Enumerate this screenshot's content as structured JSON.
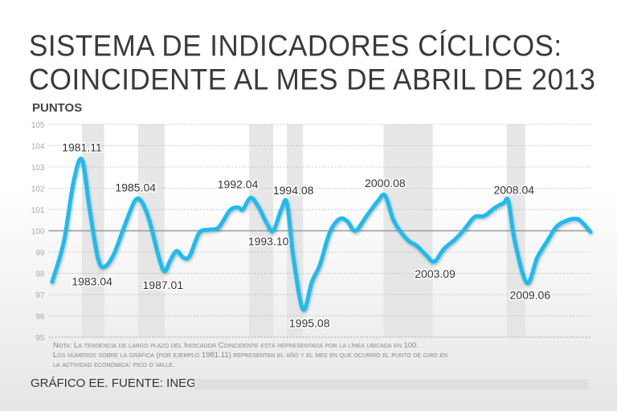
{
  "title_line1": "SISTEMA DE INDICADORES CÍCLICOS:",
  "title_line2": "COINCIDENTE AL MES DE ABRIL DE 2013",
  "notes": [
    "Nota: La tendencia de largo plazo del Indicador Coincidente está representada por la línea ubicada en 100.",
    "Los números sobre la gráfica (por ejemplo 1981.11) representan el año y el mes en que ocurrió el punto de giro en",
    "la actividad económica: pico o valle."
  ],
  "source": "GRÁFICO EE. FUENTE: INEGI.",
  "chart_data": {
    "type": "line",
    "title": "SISTEMA DE INDICADORES CÍCLICOS: COINCIDENTE AL MES DE ABRIL DE 2013",
    "ylabel": "PUNTOS",
    "xlabel": "",
    "ylim": [
      95,
      105
    ],
    "yticks": [
      "95",
      "96",
      "97",
      "98",
      "99",
      "100",
      "101",
      "102",
      "103",
      "104",
      "105"
    ],
    "xlim": [
      1980.0,
      2013.5
    ],
    "grid": true,
    "reference_line": 100,
    "line_color": "#1bbcef",
    "recession_shading_color": "#e3e3e3",
    "recession_bands": [
      [
        1981.92,
        1983.3
      ],
      [
        1985.4,
        1987.05
      ],
      [
        1992.3,
        1993.8
      ],
      [
        1994.65,
        1995.65
      ],
      [
        2000.65,
        2003.7
      ],
      [
        2008.3,
        2009.45
      ]
    ],
    "x": [
      1980.07,
      1980.8,
      1981.4,
      1981.92,
      1982.4,
      1982.9,
      1983.3,
      1983.9,
      1984.6,
      1985.2,
      1985.6,
      1986.1,
      1986.7,
      1987.05,
      1987.4,
      1987.8,
      1988.2,
      1988.6,
      1989.2,
      1989.8,
      1990.4,
      1991.1,
      1991.6,
      1991.9,
      1992.4,
      1992.9,
      1993.4,
      1993.8,
      1994.3,
      1994.65,
      1995.05,
      1995.65,
      1996.2,
      1996.7,
      1997.3,
      1997.9,
      1998.4,
      1998.9,
      1999.6,
      2000.3,
      2000.75,
      2001.3,
      2002.1,
      2002.7,
      2003.3,
      2003.8,
      2004.4,
      2005.1,
      2005.7,
      2006.3,
      2006.9,
      2007.6,
      2008.1,
      2008.4,
      2008.8,
      2009.55,
      2010.2,
      2010.8,
      2011.4,
      2012.1,
      2012.7,
      2013.1,
      2013.5
    ],
    "y": [
      97.6,
      99.5,
      102.3,
      103.35,
      101.0,
      98.75,
      98.3,
      98.9,
      100.3,
      101.4,
      101.4,
      100.5,
      98.75,
      98.1,
      98.6,
      99.05,
      98.75,
      98.8,
      99.9,
      100.05,
      100.15,
      100.95,
      101.1,
      101.0,
      101.55,
      101.1,
      100.35,
      100.0,
      101.0,
      101.3,
      98.75,
      96.3,
      97.6,
      98.4,
      99.9,
      100.55,
      100.45,
      100.0,
      100.7,
      101.4,
      101.65,
      100.45,
      99.6,
      99.3,
      98.85,
      98.55,
      99.15,
      99.6,
      100.1,
      100.65,
      100.7,
      101.1,
      101.3,
      101.4,
      99.5,
      97.55,
      98.75,
      99.5,
      100.2,
      100.5,
      100.55,
      100.3,
      99.95
    ],
    "annotations": [
      {
        "text": "1981.11",
        "x": 1981.92,
        "y": 103.35,
        "kind": "pico"
      },
      {
        "text": "1983.04",
        "x": 1983.3,
        "y": 98.3,
        "kind": "valle"
      },
      {
        "text": "1985.04",
        "x": 1985.4,
        "y": 101.4,
        "kind": "pico"
      },
      {
        "text": "1987.01",
        "x": 1987.05,
        "y": 98.1,
        "kind": "valle"
      },
      {
        "text": "1992.04",
        "x": 1992.4,
        "y": 101.55,
        "kind": "pico"
      },
      {
        "text": "1993.10",
        "x": 1993.8,
        "y": 100.0,
        "kind": "valle"
      },
      {
        "text": "1994.08",
        "x": 1994.65,
        "y": 101.3,
        "kind": "pico"
      },
      {
        "text": "1995.08",
        "x": 1995.65,
        "y": 96.3,
        "kind": "valle"
      },
      {
        "text": "2000.08",
        "x": 2000.75,
        "y": 101.65,
        "kind": "pico"
      },
      {
        "text": "2003.09",
        "x": 2003.8,
        "y": 98.55,
        "kind": "valle"
      },
      {
        "text": "2008.04",
        "x": 2008.4,
        "y": 101.4,
        "kind": "pico"
      },
      {
        "text": "2009.06",
        "x": 2009.55,
        "y": 97.55,
        "kind": "valle"
      }
    ]
  }
}
